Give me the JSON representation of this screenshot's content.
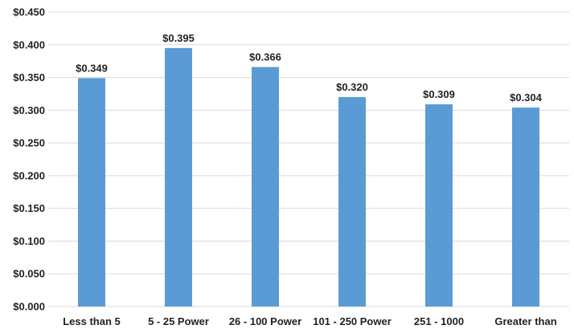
{
  "chart_data": {
    "type": "bar",
    "categories": [
      "Less than 5",
      "5 - 25 Power",
      "26 - 100 Power",
      "101 - 250 Power",
      "251 - 1000",
      "Greater than"
    ],
    "values": [
      0.349,
      0.395,
      0.366,
      0.32,
      0.309,
      0.304
    ],
    "data_labels": [
      "$0.349",
      "$0.395",
      "$0.366",
      "$0.320",
      "$0.309",
      "$0.304"
    ],
    "y_ticks": [
      "$0.000",
      "$0.050",
      "$0.100",
      "$0.150",
      "$0.200",
      "$0.250",
      "$0.300",
      "$0.350",
      "$0.400",
      "$0.450"
    ],
    "y_tick_values": [
      0,
      0.05,
      0.1,
      0.15,
      0.2,
      0.25,
      0.3,
      0.35,
      0.4,
      0.45
    ],
    "ylim": [
      0,
      0.45
    ],
    "title": "",
    "xlabel": "",
    "ylabel": "",
    "grid": true,
    "bar_color": "#5b9bd5"
  }
}
